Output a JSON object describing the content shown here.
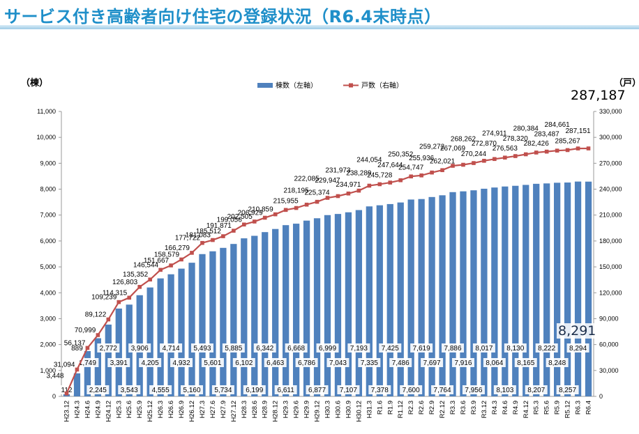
{
  "title": "サービス付き高齢者向け住宅の登録状況（R6.4末時点）",
  "left_unit": "（棟）",
  "right_unit": "（戸）",
  "total_units_label": "287,187",
  "latest_buildings_label": "8,291",
  "colors": {
    "bar": "#4f81bd",
    "line": "#c0504d",
    "title": "#1f8fc9"
  },
  "chart_data": {
    "type": "bar",
    "legend_placement": "top-center",
    "grid": false,
    "categories": [
      "H23.12",
      "H24.3",
      "H24.6",
      "H24.9",
      "H24.12",
      "H25.3",
      "H25.6",
      "H25.9",
      "H25.12",
      "H26.3",
      "H26.6",
      "H26.9",
      "H26.12",
      "H27.3",
      "H27.6",
      "H27.9",
      "H27.12",
      "H28.3",
      "H28.6",
      "H28.9",
      "H28.12",
      "H29.3",
      "H29.6",
      "H29.9",
      "H29.12",
      "H30.3",
      "H30.6",
      "H30.9",
      "H30.12",
      "H31.3",
      "R1.6",
      "R1.9",
      "R1.12",
      "R2.3",
      "R2.6",
      "R2.9",
      "R2.12",
      "R3.3",
      "R3.6",
      "R3.9",
      "R3.12",
      "R4.3",
      "R4.6",
      "R4.9",
      "R4.12",
      "R5.3",
      "R5.6",
      "R5.9",
      "R5.12",
      "R6.3",
      "R6.4"
    ],
    "series": [
      {
        "name": "棟数（左軸）",
        "axis": "left",
        "type": "bar",
        "values": [
          112,
          889,
          1749,
          2245,
          2772,
          3391,
          3543,
          3906,
          4205,
          4555,
          4714,
          4932,
          5160,
          5493,
          5601,
          5734,
          5885,
          6102,
          6199,
          6342,
          6463,
          6611,
          6668,
          6786,
          6877,
          6999,
          7043,
          7107,
          7193,
          7335,
          7378,
          7425,
          7486,
          7600,
          7619,
          7697,
          7764,
          7886,
          7916,
          7956,
          8017,
          8064,
          8103,
          8130,
          8165,
          8207,
          8222,
          8248,
          8257,
          8294,
          8291
        ]
      },
      {
        "name": "戸数（右軸）",
        "axis": "right",
        "type": "line",
        "values": [
          3448,
          31094,
          56137,
          70999,
          89122,
          109239,
          114315,
          126803,
          135352,
          146544,
          151667,
          158579,
          166279,
          177722,
          181083,
          185512,
          191871,
          199056,
          202505,
          206929,
          210859,
          215955,
          218195,
          222085,
          225374,
          229947,
          231973,
          234971,
          238289,
          244054,
          245728,
          247644,
          250352,
          254747,
          255936,
          259272,
          262021,
          267069,
          268262,
          270244,
          272870,
          274911,
          276563,
          278320,
          280384,
          282426,
          283487,
          284661,
          285267,
          287151,
          287187
        ]
      }
    ],
    "bar_labels": [
      "112",
      "889",
      "1,749",
      "2,245",
      "2,772",
      "3,391",
      "3,543",
      "3,906",
      "4,205",
      "4,555",
      "4,714",
      "4,932",
      "5,160",
      "5,493",
      "5,601",
      "5,734",
      "5,885",
      "6,102",
      "6,199",
      "6,342",
      "6,463",
      "6,611",
      "6,668",
      "6,786",
      "6,877",
      "6,999",
      "7,043",
      "7,107",
      "7,193",
      "7,335",
      "7,378",
      "7,425",
      "7,486",
      "7,600",
      "7,619",
      "7,697",
      "7,764",
      "7,886",
      "7,916",
      "7,956",
      "8,017",
      "8,064",
      "8,103",
      "8,130",
      "8,165",
      "8,207",
      "8,222",
      "8,248",
      "8,257",
      "8,294",
      ""
    ],
    "line_labels": [
      "3,448",
      "31,094",
      "56,137",
      "70,999",
      "89,122",
      "109,239",
      "114,315",
      "126,803",
      "135,352",
      "146,544",
      "151,667",
      "158,579",
      "166,279",
      "177,722",
      "181,083",
      "185,512",
      "191,871",
      "199,056",
      "202,505",
      "206,929",
      "210,859",
      "215,955",
      "218,195",
      "222,085",
      "225,374",
      "229,947",
      "231,973",
      "234,971",
      "238,289",
      "244,054",
      "245,728",
      "247,644",
      "250,352",
      "254,747",
      "255,936",
      "259,272",
      "262,021",
      "267,069",
      "268,262",
      "270,244",
      "272,870",
      "274,911",
      "276,563",
      "278,320",
      "280,384",
      "282,426",
      "283,487",
      "284,661",
      "285,267",
      "287,151",
      ""
    ],
    "left_axis": {
      "ylim": [
        0,
        11000
      ],
      "ticks": [
        "0",
        "1,000",
        "2,000",
        "3,000",
        "4,000",
        "5,000",
        "6,000",
        "7,000",
        "8,000",
        "9,000",
        "10,000",
        "11,000"
      ]
    },
    "right_axis": {
      "ylim": [
        0,
        330000
      ],
      "ticks": [
        "0",
        "30,000",
        "60,000",
        "90,000",
        "120,000",
        "150,000",
        "180,000",
        "210,000",
        "240,000",
        "270,000",
        "300,000",
        "330,000"
      ]
    }
  }
}
